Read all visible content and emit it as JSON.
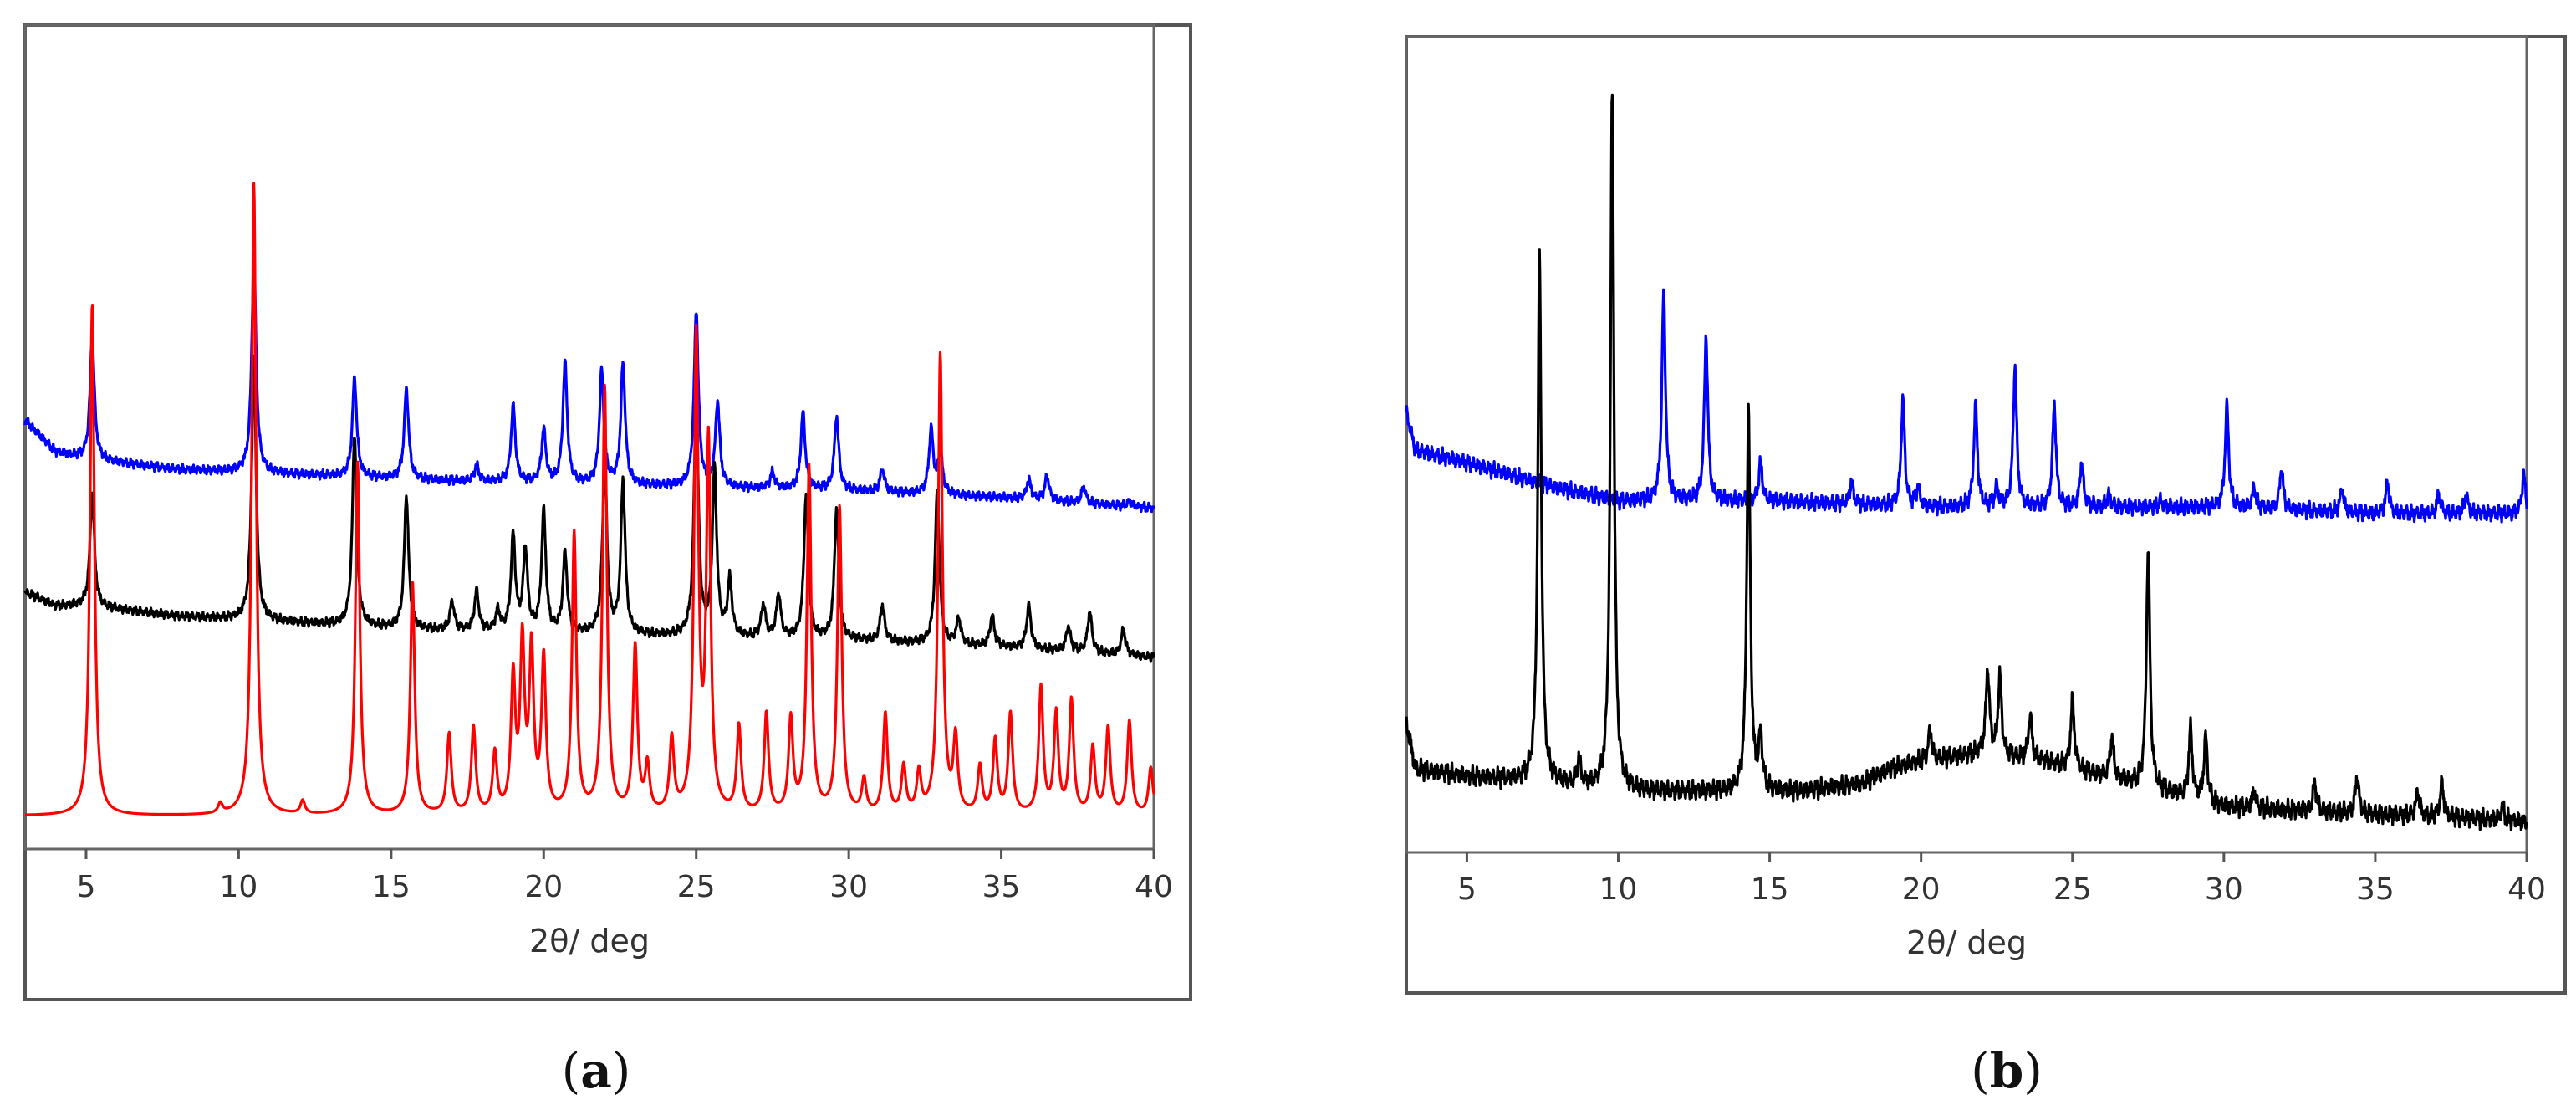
{
  "chart_data": [
    {
      "type": "line",
      "panel_label": "a",
      "title": "",
      "xlabel": "2θ/ deg",
      "ylabel": "",
      "xlim": [
        3,
        40
      ],
      "x_ticks": [
        5,
        10,
        15,
        20,
        25,
        30,
        35,
        40
      ],
      "grid": false,
      "legend": "none",
      "y_ticks_shown": false,
      "series": [
        {
          "color": "#0000ff",
          "baseline": [
            [
              3,
              0.53
            ],
            [
              4,
              0.44
            ],
            [
              5,
              0.42
            ],
            [
              8,
              0.39
            ],
            [
              12,
              0.375
            ],
            [
              16,
              0.36
            ],
            [
              20,
              0.35
            ],
            [
              25,
              0.34
            ],
            [
              30,
              0.33
            ],
            [
              35,
              0.31
            ],
            [
              40,
              0.28
            ]
          ],
          "peaks": [
            [
              5.2,
              0.77
            ],
            [
              10.5,
              1.0
            ],
            [
              13.8,
              0.65
            ],
            [
              15.5,
              0.62
            ],
            [
              17.8,
              0.4
            ],
            [
              19.0,
              0.57
            ],
            [
              20.0,
              0.5
            ],
            [
              20.7,
              0.69
            ],
            [
              21.9,
              0.67
            ],
            [
              22.6,
              0.69
            ],
            [
              25.0,
              0.84
            ],
            [
              25.7,
              0.58
            ],
            [
              27.5,
              0.38
            ],
            [
              28.5,
              0.55
            ],
            [
              29.6,
              0.54
            ],
            [
              31.1,
              0.39
            ],
            [
              32.7,
              0.5
            ],
            [
              33.0,
              0.44
            ],
            [
              35.9,
              0.36
            ],
            [
              36.5,
              0.37
            ],
            [
              37.7,
              0.34
            ],
            [
              39.2,
              0.3
            ]
          ]
        },
        {
          "color": "#000000",
          "baseline": [
            [
              3,
              0.31
            ],
            [
              4,
              0.27
            ],
            [
              5,
              0.27
            ],
            [
              8,
              0.24
            ],
            [
              12,
              0.22
            ],
            [
              16,
              0.2
            ],
            [
              20,
              0.19
            ],
            [
              25,
              0.18
            ],
            [
              30,
              0.17
            ],
            [
              35,
              0.15
            ],
            [
              40,
              0.12
            ]
          ],
          "peaks": [
            [
              5.2,
              0.6
            ],
            [
              10.5,
              1.0
            ],
            [
              13.8,
              0.77
            ],
            [
              15.5,
              0.59
            ],
            [
              17.0,
              0.28
            ],
            [
              17.8,
              0.31
            ],
            [
              18.5,
              0.25
            ],
            [
              19.0,
              0.47
            ],
            [
              19.4,
              0.43
            ],
            [
              20.0,
              0.54
            ],
            [
              20.7,
              0.42
            ],
            [
              22.0,
              0.69
            ],
            [
              22.6,
              0.63
            ],
            [
              25.0,
              0.88
            ],
            [
              25.6,
              0.66
            ],
            [
              26.1,
              0.34
            ],
            [
              27.2,
              0.27
            ],
            [
              27.7,
              0.3
            ],
            [
              28.6,
              0.59
            ],
            [
              29.6,
              0.55
            ],
            [
              31.1,
              0.27
            ],
            [
              32.9,
              0.6
            ],
            [
              33.6,
              0.23
            ],
            [
              34.7,
              0.24
            ],
            [
              35.9,
              0.27
            ],
            [
              37.2,
              0.21
            ],
            [
              37.9,
              0.25
            ],
            [
              39.0,
              0.2
            ]
          ]
        },
        {
          "color": "#ff0000",
          "baseline": [
            [
              3,
              0.05
            ],
            [
              40,
              0.05
            ]
          ],
          "peaks": [
            [
              5.2,
              0.82
            ],
            [
              9.4,
              0.065
            ],
            [
              10.5,
              1.0
            ],
            [
              12.1,
              0.07
            ],
            [
              13.9,
              0.58
            ],
            [
              15.7,
              0.4
            ],
            [
              16.9,
              0.17
            ],
            [
              17.7,
              0.18
            ],
            [
              18.4,
              0.14
            ],
            [
              19.0,
              0.25
            ],
            [
              19.3,
              0.3
            ],
            [
              19.6,
              0.29
            ],
            [
              20.0,
              0.28
            ],
            [
              21.0,
              0.47
            ],
            [
              22.0,
              0.69
            ],
            [
              23.0,
              0.3
            ],
            [
              23.4,
              0.12
            ],
            [
              24.2,
              0.16
            ],
            [
              25.0,
              0.76
            ],
            [
              25.4,
              0.6
            ],
            [
              26.4,
              0.18
            ],
            [
              27.3,
              0.2
            ],
            [
              28.1,
              0.19
            ],
            [
              28.7,
              0.57
            ],
            [
              29.7,
              0.51
            ],
            [
              30.5,
              0.1
            ],
            [
              31.2,
              0.2
            ],
            [
              31.8,
              0.12
            ],
            [
              32.3,
              0.11
            ],
            [
              33.0,
              0.74
            ],
            [
              33.5,
              0.16
            ],
            [
              34.3,
              0.12
            ],
            [
              34.8,
              0.16
            ],
            [
              35.3,
              0.2
            ],
            [
              36.3,
              0.24
            ],
            [
              36.8,
              0.2
            ],
            [
              37.3,
              0.22
            ],
            [
              38.0,
              0.15
            ],
            [
              38.5,
              0.18
            ],
            [
              39.2,
              0.19
            ],
            [
              39.9,
              0.12
            ]
          ]
        }
      ]
    },
    {
      "type": "line",
      "panel_label": "b",
      "title": "",
      "xlabel": "2θ/ deg",
      "ylabel": "",
      "xlim": [
        3,
        40
      ],
      "x_ticks": [
        5,
        10,
        15,
        20,
        25,
        30,
        35,
        40
      ],
      "grid": false,
      "legend": "none",
      "y_ticks_shown": false,
      "series": [
        {
          "color": "#0000ff",
          "baseline": [
            [
              3,
              0.41
            ],
            [
              3.3,
              0.35
            ],
            [
              5,
              0.33
            ],
            [
              8,
              0.29
            ],
            [
              10,
              0.27
            ],
            [
              15,
              0.27
            ],
            [
              20,
              0.26
            ],
            [
              25,
              0.26
            ],
            [
              30,
              0.26
            ],
            [
              35,
              0.25
            ],
            [
              40,
              0.25
            ]
          ],
          "peaks": [
            [
              11.5,
              0.6
            ],
            [
              12.9,
              0.53
            ],
            [
              14.7,
              0.33
            ],
            [
              17.7,
              0.3
            ],
            [
              19.4,
              0.43
            ],
            [
              19.9,
              0.29
            ],
            [
              21.8,
              0.42
            ],
            [
              22.5,
              0.29
            ],
            [
              23.1,
              0.48
            ],
            [
              24.4,
              0.42
            ],
            [
              25.3,
              0.33
            ],
            [
              26.2,
              0.28
            ],
            [
              27.9,
              0.27
            ],
            [
              30.1,
              0.42
            ],
            [
              31.0,
              0.29
            ],
            [
              31.9,
              0.32
            ],
            [
              33.9,
              0.29
            ],
            [
              35.4,
              0.3
            ],
            [
              37.1,
              0.28
            ],
            [
              38.0,
              0.28
            ],
            [
              39.9,
              0.31
            ]
          ]
        },
        {
          "color": "#000000",
          "baseline": [
            [
              3,
              0.17
            ],
            [
              3.3,
              0.11
            ],
            [
              5,
              0.1
            ],
            [
              8,
              0.09
            ],
            [
              10,
              0.08
            ],
            [
              13,
              0.08
            ],
            [
              16,
              0.08
            ],
            [
              18,
              0.09
            ],
            [
              19,
              0.11
            ],
            [
              20,
              0.12
            ],
            [
              22,
              0.13
            ],
            [
              24,
              0.12
            ],
            [
              26,
              0.1
            ],
            [
              28,
              0.08
            ],
            [
              30,
              0.06
            ],
            [
              35,
              0.05
            ],
            [
              38,
              0.045
            ],
            [
              40,
              0.04
            ]
          ],
          "peaks": [
            [
              7.4,
              0.78
            ],
            [
              8.7,
              0.12
            ],
            [
              9.8,
              1.0
            ],
            [
              14.3,
              0.58
            ],
            [
              14.7,
              0.15
            ],
            [
              20.3,
              0.16
            ],
            [
              22.2,
              0.24
            ],
            [
              22.6,
              0.23
            ],
            [
              23.6,
              0.18
            ],
            [
              25.0,
              0.2
            ],
            [
              26.3,
              0.15
            ],
            [
              27.5,
              0.4
            ],
            [
              28.9,
              0.16
            ],
            [
              29.4,
              0.15
            ],
            [
              31.0,
              0.08
            ],
            [
              33.0,
              0.09
            ],
            [
              34.4,
              0.1
            ],
            [
              36.4,
              0.08
            ],
            [
              37.2,
              0.09
            ],
            [
              39.2,
              0.06
            ]
          ]
        }
      ]
    }
  ]
}
